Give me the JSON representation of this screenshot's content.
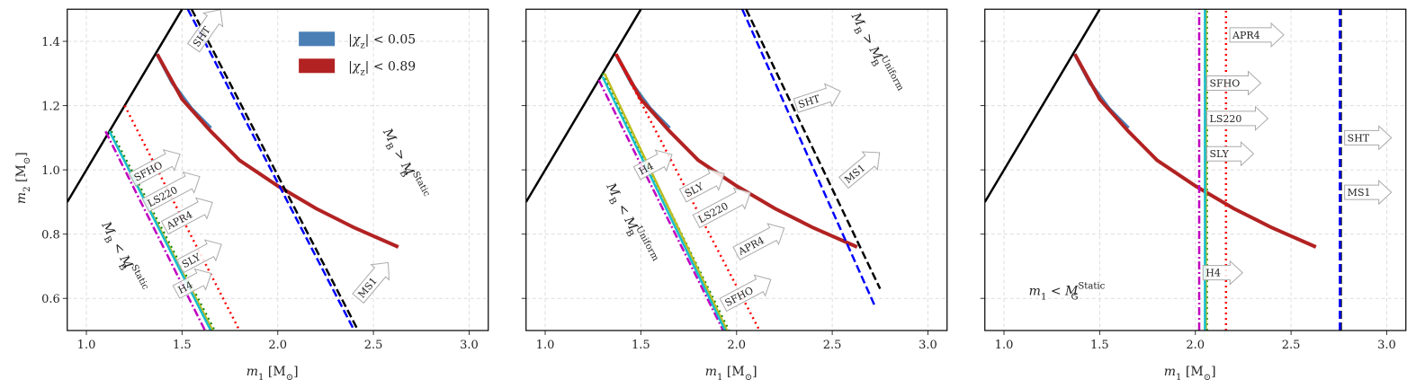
{
  "chart_data": [
    {
      "type": "line",
      "xlim": [
        0.9,
        3.1
      ],
      "ylim": [
        0.5,
        1.5
      ],
      "xticks": [
        {
          "value": 1,
          "label": "1.0"
        },
        1.5,
        {
          "value": 2,
          "label": "2.0"
        },
        2.5,
        {
          "value": 3,
          "label": "3.0"
        }
      ],
      "yticks": [
        0.6,
        0.8,
        {
          "value": 1,
          "label": "1.0"
        },
        1.2,
        1.4
      ],
      "show_ytick_labels": true,
      "grid": true,
      "legend": "upper center",
      "x_label": [
        [
          "m",
          "i"
        ],
        [
          "1",
          "sub"
        ],
        [
          " [M",
          ""
        ],
        [
          "⊙",
          "sub"
        ],
        [
          "]",
          ""
        ]
      ],
      "y_label": [
        [
          "m",
          "i"
        ],
        [
          "2",
          "sub"
        ],
        [
          " [M",
          ""
        ],
        [
          "⊙",
          "sub"
        ],
        [
          "]",
          ""
        ]
      ],
      "regions": [
        {
          "name": [
            [
              "|",
              ""
            ],
            [
              "χ",
              "i"
            ],
            [
              "z",
              "sub"
            ],
            [
              "| < 0.05",
              ""
            ]
          ],
          "color": "#4a7fb5",
          "x": [
            1.37,
            1.45,
            1.55,
            1.65
          ],
          "y": [
            1.36,
            1.27,
            1.19,
            1.13
          ]
        },
        {
          "name": [
            [
              "|",
              ""
            ],
            [
              "χ",
              "i"
            ],
            [
              "z",
              "sub"
            ],
            [
              "| < 0.89",
              ""
            ]
          ],
          "color": "#b22222",
          "x": [
            1.37,
            1.5,
            1.65,
            1.8,
            2.0,
            2.2,
            2.4,
            2.63
          ],
          "y": [
            1.36,
            1.22,
            1.12,
            1.03,
            0.95,
            0.88,
            0.82,
            0.76
          ]
        }
      ],
      "series": [
        {
          "color": "#000000",
          "linestyle": "solid",
          "x": [
            0.9,
            1.5
          ],
          "y": [
            0.9,
            1.5
          ]
        },
        {
          "name": "H4",
          "color": "#c000c0",
          "linestyle": "dashdot",
          "x": [
            1.1,
            1.62
          ],
          "y": [
            1.12,
            0.5
          ]
        },
        {
          "name": "SFHO",
          "color": "#008000",
          "linestyle": "dotted",
          "x": [
            1.13,
            1.67
          ],
          "y": [
            1.12,
            0.5
          ]
        },
        {
          "name": "LS220",
          "color": "#bcbd22",
          "linestyle": "solid",
          "x": [
            1.12,
            1.66
          ],
          "y": [
            1.12,
            0.5
          ]
        },
        {
          "name": "SLY",
          "color": "#17becf",
          "linestyle": "solid",
          "x": [
            1.12,
            1.65
          ],
          "y": [
            1.12,
            0.5
          ]
        },
        {
          "name": "APR4",
          "color": "#ff0000",
          "linestyle": "dotted",
          "x": [
            1.2,
            1.8
          ],
          "y": [
            1.2,
            0.5
          ]
        },
        {
          "name": "SHT",
          "color": "#000000",
          "linestyle": "dashed",
          "x": [
            1.55,
            2.42
          ],
          "y": [
            1.5,
            0.5
          ]
        },
        {
          "name": "MS1",
          "color": "#0000ff",
          "linestyle": "dashed",
          "x": [
            1.53,
            2.4
          ],
          "y": [
            1.5,
            0.5
          ]
        }
      ],
      "annotations": [
        {
          "parts": [
            [
              "M",
              "i"
            ],
            [
              "B",
              "sub"
            ],
            [
              " > ",
              ""
            ],
            [
              "M",
              "i"
            ],
            [
              "Static",
              "sup"
            ],
            [
              "B",
              "stack"
            ]
          ]
        },
        {
          "parts": [
            [
              "M",
              "i"
            ],
            [
              "B",
              "sub"
            ],
            [
              " < ",
              ""
            ],
            [
              "M",
              "i"
            ],
            [
              "Static",
              "sup"
            ],
            [
              "B",
              "stack"
            ]
          ]
        }
      ]
    },
    {
      "type": "line",
      "xlim": [
        0.9,
        3.1
      ],
      "ylim": [
        0.5,
        1.5
      ],
      "xticks": [
        {
          "value": 1,
          "label": "1.0"
        },
        1.5,
        {
          "value": 2,
          "label": "2.0"
        },
        2.5,
        {
          "value": 3,
          "label": "3.0"
        }
      ],
      "yticks": [
        0.6,
        0.8,
        1,
        1.2,
        1.4
      ],
      "show_ytick_labels": false,
      "grid": true,
      "x_label": [
        [
          "m",
          "i"
        ],
        [
          "1",
          "sub"
        ],
        [
          " [M",
          ""
        ],
        [
          "⊙",
          "sub"
        ],
        [
          "]",
          ""
        ]
      ],
      "regions": [
        {
          "color": "#4a7fb5",
          "x": [
            1.37,
            1.45,
            1.55,
            1.65
          ],
          "y": [
            1.36,
            1.27,
            1.19,
            1.13
          ]
        },
        {
          "color": "#b22222",
          "x": [
            1.37,
            1.5,
            1.65,
            1.8,
            2.0,
            2.2,
            2.4,
            2.63
          ],
          "y": [
            1.36,
            1.22,
            1.12,
            1.03,
            0.95,
            0.88,
            0.82,
            0.76
          ]
        }
      ],
      "series": [
        {
          "color": "#000000",
          "linestyle": "solid",
          "x": [
            0.9,
            1.5
          ],
          "y": [
            0.9,
            1.5
          ]
        },
        {
          "name": "H4",
          "color": "#c000c0",
          "linestyle": "dashdot",
          "x": [
            1.28,
            1.93
          ],
          "y": [
            1.28,
            0.5
          ]
        },
        {
          "name": "SFHO",
          "color": "#008000",
          "linestyle": "dotted",
          "x": [
            1.3,
            1.96
          ],
          "y": [
            1.3,
            0.5
          ]
        },
        {
          "name": "LS220",
          "color": "#bcbd22",
          "linestyle": "solid",
          "x": [
            1.31,
            1.95
          ],
          "y": [
            1.3,
            0.5
          ]
        },
        {
          "name": "SLY",
          "color": "#17becf",
          "linestyle": "solid",
          "x": [
            1.3,
            1.94
          ],
          "y": [
            1.29,
            0.5
          ]
        },
        {
          "name": "APR4",
          "color": "#ff0000",
          "linestyle": "dotted",
          "x": [
            1.37,
            2.12
          ],
          "y": [
            1.36,
            0.5
          ]
        },
        {
          "name": "SHT",
          "color": "#000000",
          "linestyle": "dashed",
          "x": [
            2.05,
            2.75
          ],
          "y": [
            1.5,
            0.63
          ]
        },
        {
          "name": "MS1",
          "color": "#0000ff",
          "linestyle": "dashed",
          "x": [
            2.03,
            2.72
          ],
          "y": [
            1.5,
            0.58
          ]
        }
      ],
      "annotations": [
        {
          "parts": [
            [
              "M",
              "i"
            ],
            [
              "B",
              "sub"
            ],
            [
              " < ",
              ""
            ],
            [
              "M",
              "i"
            ],
            [
              "Uniform",
              "sup"
            ],
            [
              "B",
              "stack"
            ]
          ]
        },
        {
          "parts": [
            [
              "M",
              "i"
            ],
            [
              "B",
              "sub"
            ],
            [
              " > ",
              ""
            ],
            [
              "M",
              "i"
            ],
            [
              "Uniform",
              "sup"
            ],
            [
              "B",
              "stack"
            ]
          ]
        }
      ]
    },
    {
      "type": "line",
      "xlim": [
        0.9,
        3.1
      ],
      "ylim": [
        0.5,
        1.5
      ],
      "xticks": [
        {
          "value": 1,
          "label": "1.0"
        },
        1.5,
        {
          "value": 2,
          "label": "2.0"
        },
        2.5,
        {
          "value": 3,
          "label": "3.0"
        }
      ],
      "yticks": [
        0.6,
        0.8,
        1,
        1.2,
        1.4
      ],
      "show_ytick_labels": false,
      "grid": true,
      "x_label": [
        [
          "m",
          "i"
        ],
        [
          "1",
          "sub"
        ],
        [
          " [M",
          ""
        ],
        [
          "⊙",
          "sub"
        ],
        [
          "]",
          ""
        ]
      ],
      "regions": [
        {
          "color": "#4a7fb5",
          "x": [
            1.37,
            1.45,
            1.55,
            1.65
          ],
          "y": [
            1.36,
            1.27,
            1.19,
            1.13
          ]
        },
        {
          "color": "#b22222",
          "x": [
            1.37,
            1.5,
            1.65,
            1.8,
            2.0,
            2.2,
            2.4,
            2.63
          ],
          "y": [
            1.36,
            1.22,
            1.12,
            1.03,
            0.95,
            0.88,
            0.82,
            0.76
          ]
        }
      ],
      "series": [
        {
          "color": "#000000",
          "linestyle": "solid",
          "x": [
            0.9,
            1.5
          ],
          "y": [
            0.9,
            1.5
          ]
        },
        {
          "name": "H4",
          "color": "#c000c0",
          "linestyle": "dashdot",
          "x": [
            2.02,
            2.02
          ],
          "y": [
            0.5,
            1.5
          ]
        },
        {
          "name": "SFHO",
          "color": "#008000",
          "linestyle": "dotted",
          "x": [
            2.06,
            2.06
          ],
          "y": [
            0.5,
            1.5
          ]
        },
        {
          "name": "LS220",
          "color": "#bcbd22",
          "linestyle": "solid",
          "x": [
            2.055,
            2.055
          ],
          "y": [
            0.5,
            1.5
          ]
        },
        {
          "name": "SLY",
          "color": "#17becf",
          "linestyle": "solid",
          "x": [
            2.05,
            2.05
          ],
          "y": [
            0.5,
            1.5
          ]
        },
        {
          "name": "APR4",
          "color": "#ff0000",
          "linestyle": "dotted",
          "x": [
            2.16,
            2.16
          ],
          "y": [
            0.5,
            1.5
          ]
        },
        {
          "name": "SHT",
          "color": "#000000",
          "linestyle": "dashed",
          "x": [
            2.76,
            2.76
          ],
          "y": [
            0.5,
            1.5
          ]
        },
        {
          "name": "MS1",
          "color": "#0000ff",
          "linestyle": "dashed",
          "x": [
            2.755,
            2.755
          ],
          "y": [
            0.5,
            1.5
          ]
        }
      ],
      "annotations": [
        {
          "parts": [
            [
              "m",
              "i"
            ],
            [
              "1",
              "sub"
            ],
            [
              " < ",
              ""
            ],
            [
              "M",
              "i"
            ],
            [
              "Static",
              "sup"
            ],
            [
              "G",
              "stack"
            ]
          ]
        }
      ]
    }
  ]
}
